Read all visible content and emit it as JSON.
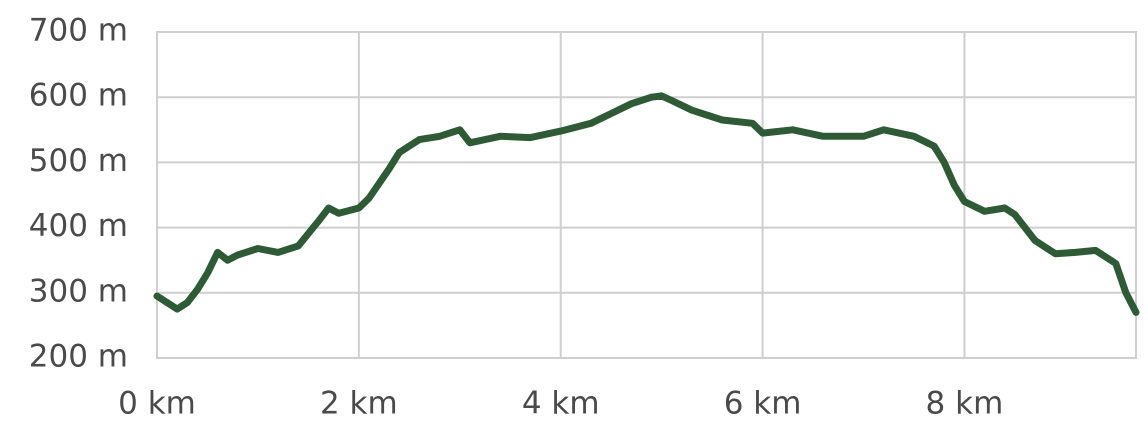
{
  "chart_data": {
    "type": "line",
    "x": [
      0,
      0.1,
      0.2,
      0.3,
      0.4,
      0.5,
      0.6,
      0.7,
      0.8,
      1.0,
      1.2,
      1.4,
      1.6,
      1.7,
      1.8,
      2.0,
      2.1,
      2.3,
      2.4,
      2.6,
      2.8,
      3.0,
      3.1,
      3.4,
      3.7,
      4.0,
      4.3,
      4.5,
      4.7,
      4.9,
      5.0,
      5.1,
      5.3,
      5.6,
      5.9,
      6.0,
      6.3,
      6.6,
      7.0,
      7.2,
      7.5,
      7.7,
      7.8,
      7.9,
      8.0,
      8.2,
      8.4,
      8.5,
      8.7,
      8.9,
      9.1,
      9.3,
      9.5,
      9.6,
      9.7
    ],
    "series": [
      {
        "color": "#2e5b36",
        "values": [
          295,
          285,
          275,
          285,
          305,
          330,
          362,
          350,
          358,
          368,
          362,
          372,
          410,
          430,
          422,
          430,
          445,
          490,
          515,
          535,
          540,
          550,
          530,
          540,
          538,
          548,
          560,
          575,
          590,
          600,
          602,
          595,
          580,
          565,
          560,
          545,
          550,
          540,
          540,
          550,
          540,
          525,
          500,
          465,
          440,
          425,
          430,
          420,
          380,
          360,
          362,
          365,
          345,
          300,
          270
        ]
      }
    ],
    "xlim": [
      0,
      9.7
    ],
    "ylim": [
      200,
      700
    ],
    "xticks": [
      {
        "value": 0,
        "label": "0 km"
      },
      {
        "value": 2,
        "label": "2 km"
      },
      {
        "value": 4,
        "label": "4 km"
      },
      {
        "value": 6,
        "label": "6 km"
      },
      {
        "value": 8,
        "label": "8 km"
      }
    ],
    "yticks": [
      {
        "value": 200,
        "label": "200 m"
      },
      {
        "value": 300,
        "label": "300 m"
      },
      {
        "value": 400,
        "label": "400 m"
      },
      {
        "value": 500,
        "label": "500 m"
      },
      {
        "value": 600,
        "label": "600 m"
      },
      {
        "value": 700,
        "label": "700 m"
      }
    ],
    "grid": true
  }
}
